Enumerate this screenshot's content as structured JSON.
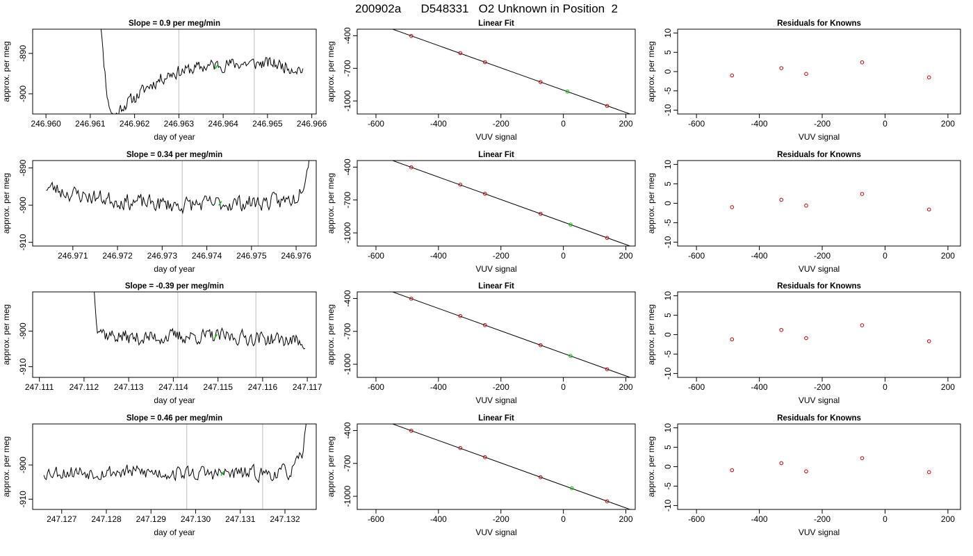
{
  "page_title": "200902a      D548331   O2 Unknown in Position  2",
  "colors": {
    "series": "#000000",
    "known_point": "#cc0000",
    "unknown_point": "#00cc00",
    "marker_line": "#c8c8c8",
    "frame": "#000000"
  },
  "chart_data": [
    {
      "row": 1,
      "panel": "time-series",
      "type": "line",
      "title": "Slope =  0.9  per meg/min",
      "xlabel": "day of year",
      "ylabel": "approx. per meg",
      "xlim": [
        246.9597,
        246.9661
      ],
      "ylim": [
        -905,
        -884
      ],
      "xticks": [
        246.96,
        246.961,
        246.962,
        246.963,
        246.964,
        246.965,
        246.966
      ],
      "xtick_labels": [
        "246.960",
        "246.961",
        "246.962",
        "246.963",
        "246.964",
        "246.965",
        "246.966"
      ],
      "yticks": [
        -900,
        -890
      ],
      "ytick_labels": [
        "-900",
        "-890"
      ],
      "marker_lines": [
        246.963,
        246.9647
      ],
      "unknown_point": {
        "x": 246.96385,
        "y": -893.3
      },
      "series": {
        "x_start": 246.96117,
        "x_end": 246.9658,
        "count": 200,
        "anchors": [
          [
            0.0,
            -870
          ],
          [
            0.025,
            -890
          ],
          [
            0.05,
            -902
          ],
          [
            0.08,
            -906
          ],
          [
            0.12,
            -903
          ],
          [
            0.18,
            -901
          ],
          [
            0.25,
            -898
          ],
          [
            0.35,
            -895
          ],
          [
            0.45,
            -894
          ],
          [
            0.55,
            -893
          ],
          [
            0.7,
            -892.5
          ],
          [
            0.85,
            -892.5
          ],
          [
            1.0,
            -894
          ]
        ],
        "noise": 1.4,
        "seed": 11
      }
    },
    {
      "row": 1,
      "panel": "linear-fit",
      "type": "scatter",
      "title": "Linear Fit",
      "xlabel": "VUV signal",
      "ylabel": "approx. per meg",
      "xlim": [
        -660,
        230
      ],
      "ylim": [
        -1120,
        -340
      ],
      "xticks": [
        -600,
        -400,
        -200,
        0,
        200
      ],
      "xtick_labels": [
        "-600",
        "-400",
        "-200",
        "0",
        "200"
      ],
      "yticks": [
        -400,
        -700,
        -1000
      ],
      "ytick_labels": [
        "-400",
        "-700",
        "-1000"
      ],
      "fit_line": {
        "slope": 1.026,
        "intercept": -901,
        "x_from": -627,
        "x_to": 220
      },
      "knowns": [
        [
          -487,
          -402
        ],
        [
          -330,
          -560
        ],
        [
          -251,
          -643
        ],
        [
          -73,
          -826
        ],
        [
          140,
          -1046
        ]
      ],
      "unknown": [
        [
          13,
          -914
        ]
      ]
    },
    {
      "row": 1,
      "panel": "residuals",
      "type": "scatter",
      "title": "Residuals for Knowns",
      "xlabel": "VUV signal",
      "ylabel": "approx. per meg",
      "xlim": [
        -660,
        240
      ],
      "ylim": [
        -11,
        11
      ],
      "xticks": [
        -600,
        -400,
        -200,
        0,
        200
      ],
      "xtick_labels": [
        "-600",
        "-400",
        "-200",
        "0",
        "200"
      ],
      "yticks": [
        10,
        5,
        0,
        -5,
        -10
      ],
      "ytick_labels": [
        "10",
        "5",
        "0",
        "-5",
        "-10"
      ],
      "points": [
        [
          -487,
          -1.0
        ],
        [
          -330,
          0.9
        ],
        [
          -251,
          -0.6
        ],
        [
          -73,
          2.4
        ],
        [
          140,
          -1.5
        ]
      ]
    },
    {
      "row": 2,
      "panel": "time-series",
      "type": "line",
      "title": "Slope =  0.34  per meg/min",
      "xlabel": "day of year",
      "ylabel": "approx. per meg",
      "xlim": [
        246.9701,
        246.97645
      ],
      "ylim": [
        -911,
        -888
      ],
      "xticks": [
        246.971,
        246.972,
        246.973,
        246.974,
        246.975,
        246.976
      ],
      "xtick_labels": [
        "246.971",
        "246.972",
        "246.973",
        "246.974",
        "246.975",
        "246.976"
      ],
      "yticks": [
        -910,
        -900,
        -890
      ],
      "ytick_labels": [
        "-910",
        "-900",
        "-890"
      ],
      "marker_lines": [
        246.97345,
        246.97515
      ],
      "unknown_point": {
        "x": 246.9743,
        "y": -899.5
      },
      "series": {
        "x_start": 246.9704,
        "x_end": 246.9763,
        "count": 215,
        "anchors": [
          [
            0.0,
            -895
          ],
          [
            0.1,
            -897
          ],
          [
            0.3,
            -899
          ],
          [
            0.5,
            -900
          ],
          [
            0.7,
            -899.5
          ],
          [
            0.9,
            -899
          ],
          [
            0.95,
            -898
          ],
          [
            0.98,
            -893
          ],
          [
            1.0,
            -886
          ]
        ],
        "noise": 1.9,
        "seed": 23
      }
    },
    {
      "row": 2,
      "panel": "linear-fit",
      "type": "scatter",
      "title": "Linear Fit",
      "xlabel": "VUV signal",
      "ylabel": "approx. per meg",
      "xlim": [
        -660,
        230
      ],
      "ylim": [
        -1120,
        -340
      ],
      "xticks": [
        -600,
        -400,
        -200,
        0,
        200
      ],
      "xtick_labels": [
        "-600",
        "-400",
        "-200",
        "0",
        "200"
      ],
      "yticks": [
        -400,
        -700,
        -1000
      ],
      "ytick_labels": [
        "-400",
        "-700",
        "-1000"
      ],
      "fit_line": {
        "slope": 1.026,
        "intercept": -901,
        "x_from": -627,
        "x_to": 220
      },
      "knowns": [
        [
          -487,
          -402
        ],
        [
          -330,
          -560
        ],
        [
          -251,
          -643
        ],
        [
          -73,
          -826
        ],
        [
          140,
          -1046
        ]
      ],
      "unknown": [
        [
          23,
          -924
        ]
      ]
    },
    {
      "row": 2,
      "panel": "residuals",
      "type": "scatter",
      "title": "Residuals for Knowns",
      "xlabel": "VUV signal",
      "ylabel": "approx. per meg",
      "xlim": [
        -660,
        240
      ],
      "ylim": [
        -11,
        11
      ],
      "xticks": [
        -600,
        -400,
        -200,
        0,
        200
      ],
      "xtick_labels": [
        "-600",
        "-400",
        "-200",
        "0",
        "200"
      ],
      "yticks": [
        10,
        5,
        0,
        -5,
        -10
      ],
      "ytick_labels": [
        "10",
        "5",
        "0",
        "-5",
        "-10"
      ],
      "points": [
        [
          -487,
          -1.0
        ],
        [
          -330,
          0.9
        ],
        [
          -251,
          -0.6
        ],
        [
          -73,
          2.4
        ],
        [
          140,
          -1.6
        ]
      ]
    },
    {
      "row": 3,
      "panel": "time-series",
      "type": "line",
      "title": "Slope =  -0.39  per meg/min",
      "xlabel": "day of year",
      "ylabel": "approx. per meg",
      "xlim": [
        247.11085,
        247.1172
      ],
      "ylim": [
        -913,
        -889
      ],
      "xticks": [
        247.111,
        247.112,
        247.113,
        247.114,
        247.115,
        247.116,
        247.117
      ],
      "xtick_labels": [
        "247.111",
        "247.112",
        "247.113",
        "247.114",
        "247.115",
        "247.116",
        "247.117"
      ],
      "yticks": [
        -910,
        -900
      ],
      "ytick_labels": [
        "-910",
        "-900"
      ],
      "marker_lines": [
        247.1141,
        247.11585
      ],
      "unknown_point": {
        "x": 247.11495,
        "y": -901.5
      },
      "series": {
        "x_start": 247.1122,
        "x_end": 247.11695,
        "count": 190,
        "anchors": [
          [
            0.0,
            -885
          ],
          [
            0.02,
            -898
          ],
          [
            0.06,
            -901
          ],
          [
            0.2,
            -902
          ],
          [
            0.4,
            -901.5
          ],
          [
            0.6,
            -901.5
          ],
          [
            0.8,
            -902
          ],
          [
            1.0,
            -903
          ]
        ],
        "noise": 1.8,
        "seed": 37
      }
    },
    {
      "row": 3,
      "panel": "linear-fit",
      "type": "scatter",
      "title": "Linear Fit",
      "xlabel": "VUV signal",
      "ylabel": "approx. per meg",
      "xlim": [
        -660,
        230
      ],
      "ylim": [
        -1120,
        -340
      ],
      "xticks": [
        -600,
        -400,
        -200,
        0,
        200
      ],
      "xtick_labels": [
        "-600",
        "-400",
        "-200",
        "0",
        "200"
      ],
      "yticks": [
        -400,
        -700,
        -1000
      ],
      "ytick_labels": [
        "-400",
        "-700",
        "-1000"
      ],
      "fit_line": {
        "slope": 1.026,
        "intercept": -901,
        "x_from": -627,
        "x_to": 220
      },
      "knowns": [
        [
          -487,
          -402
        ],
        [
          -330,
          -560
        ],
        [
          -251,
          -643
        ],
        [
          -73,
          -826
        ],
        [
          140,
          -1046
        ]
      ],
      "unknown": [
        [
          23,
          -924
        ]
      ]
    },
    {
      "row": 3,
      "panel": "residuals",
      "type": "scatter",
      "title": "Residuals for Knowns",
      "xlabel": "VUV signal",
      "ylabel": "approx. per meg",
      "xlim": [
        -660,
        240
      ],
      "ylim": [
        -11,
        11
      ],
      "xticks": [
        -600,
        -400,
        -200,
        0,
        200
      ],
      "xtick_labels": [
        "-600",
        "-400",
        "-200",
        "0",
        "200"
      ],
      "yticks": [
        10,
        5,
        0,
        -5,
        -10
      ],
      "ytick_labels": [
        "10",
        "5",
        "0",
        "-5",
        "-10"
      ],
      "points": [
        [
          -487,
          -1.2
        ],
        [
          -330,
          1.2
        ],
        [
          -251,
          -0.9
        ],
        [
          -73,
          2.4
        ],
        [
          140,
          -1.7
        ]
      ]
    },
    {
      "row": 4,
      "panel": "time-series",
      "type": "line",
      "title": "Slope =  0.46  per meg/min",
      "xlabel": "day of year",
      "ylabel": "approx. per meg",
      "xlim": [
        247.12635,
        247.1327
      ],
      "ylim": [
        -913,
        -888
      ],
      "xticks": [
        247.127,
        247.128,
        247.129,
        247.13,
        247.131,
        247.132
      ],
      "xtick_labels": [
        "247.127",
        "247.128",
        "247.129",
        "247.130",
        "247.131",
        "247.132"
      ],
      "yticks": [
        -910,
        -900
      ],
      "ytick_labels": [
        "-910",
        "-900"
      ],
      "marker_lines": [
        247.1298,
        247.1315
      ],
      "unknown_point": {
        "x": 247.1306,
        "y": -902.5
      },
      "series": {
        "x_start": 247.1266,
        "x_end": 247.13255,
        "count": 215,
        "anchors": [
          [
            0.0,
            -902
          ],
          [
            0.3,
            -902
          ],
          [
            0.6,
            -902.5
          ],
          [
            0.85,
            -902.5
          ],
          [
            0.93,
            -902
          ],
          [
            0.97,
            -898
          ],
          [
            1.0,
            -883
          ]
        ],
        "noise": 1.9,
        "seed": 53
      }
    },
    {
      "row": 4,
      "panel": "linear-fit",
      "type": "scatter",
      "title": "Linear Fit",
      "xlabel": "VUV signal",
      "ylabel": "approx. per meg",
      "xlim": [
        -660,
        230
      ],
      "ylim": [
        -1120,
        -340
      ],
      "xticks": [
        -600,
        -400,
        -200,
        0,
        200
      ],
      "xtick_labels": [
        "-600",
        "-400",
        "-200",
        "0",
        "200"
      ],
      "yticks": [
        -400,
        -700,
        -1000
      ],
      "ytick_labels": [
        "-400",
        "-700",
        "-1000"
      ],
      "fit_line": {
        "slope": 1.026,
        "intercept": -901,
        "x_from": -627,
        "x_to": 220
      },
      "knowns": [
        [
          -487,
          -402
        ],
        [
          -330,
          -560
        ],
        [
          -251,
          -643
        ],
        [
          -73,
          -826
        ],
        [
          140,
          -1046
        ]
      ],
      "unknown": [
        [
          27,
          -927
        ]
      ]
    },
    {
      "row": 4,
      "panel": "residuals",
      "type": "scatter",
      "title": "Residuals for Knowns",
      "xlabel": "VUV signal",
      "ylabel": "approx. per meg",
      "xlim": [
        -660,
        240
      ],
      "ylim": [
        -11,
        11
      ],
      "xticks": [
        -600,
        -400,
        -200,
        0,
        200
      ],
      "xtick_labels": [
        "-600",
        "-400",
        "-200",
        "0",
        "200"
      ],
      "yticks": [
        10,
        5,
        0,
        -5,
        -10
      ],
      "ytick_labels": [
        "10",
        "5",
        "0",
        "-5",
        "-10"
      ],
      "points": [
        [
          -487,
          -0.9
        ],
        [
          -330,
          0.9
        ],
        [
          -251,
          -1.2
        ],
        [
          -73,
          2.2
        ],
        [
          140,
          -1.4
        ]
      ]
    }
  ]
}
